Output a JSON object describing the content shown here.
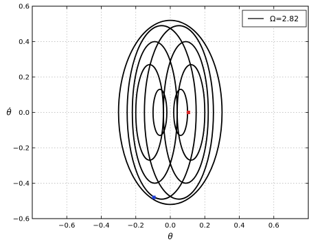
{
  "chart_data": {
    "type": "line",
    "title": "",
    "xlabel": "θ",
    "ylabel": "θ̇",
    "xlim": [
      -0.8,
      0.8
    ],
    "ylim": [
      -0.6,
      0.6
    ],
    "xticks": [
      -0.6,
      -0.4,
      -0.2,
      0.0,
      0.2,
      0.4,
      0.6
    ],
    "xtick_labels": [
      "−0.6",
      "−0.4",
      "−0.2",
      "0.0",
      "0.2",
      "0.4",
      "0.6"
    ],
    "yticks": [
      -0.6,
      -0.4,
      -0.2,
      0.0,
      0.2,
      0.4,
      0.6
    ],
    "ytick_labels": [
      "−0.6",
      "−0.4",
      "−0.2",
      "0.0",
      "0.2",
      "0.4",
      "0.6"
    ],
    "grid": true,
    "legend_position": "top-right",
    "series": [
      {
        "name": "Ω=2.82",
        "color": "#000000",
        "orbits": [
          {
            "cx": 0.0,
            "a": 0.3,
            "b": 0.52
          },
          {
            "cx": -0.05,
            "a": 0.2,
            "b": 0.49
          },
          {
            "cx": 0.05,
            "a": 0.2,
            "b": 0.49
          },
          {
            "cx": -0.09,
            "a": 0.13,
            "b": 0.4
          },
          {
            "cx": 0.09,
            "a": 0.13,
            "b": 0.4
          },
          {
            "cx": -0.12,
            "a": 0.08,
            "b": 0.27
          },
          {
            "cx": 0.12,
            "a": 0.08,
            "b": 0.27
          },
          {
            "cx": -0.06,
            "a": 0.04,
            "b": 0.13
          },
          {
            "cx": 0.06,
            "a": 0.04,
            "b": 0.13
          }
        ]
      }
    ],
    "markers": [
      {
        "x": 0.105,
        "y": 0.0,
        "color": "#d62728"
      },
      {
        "x": -0.095,
        "y": -0.48,
        "color": "#1f3fd6"
      }
    ]
  }
}
